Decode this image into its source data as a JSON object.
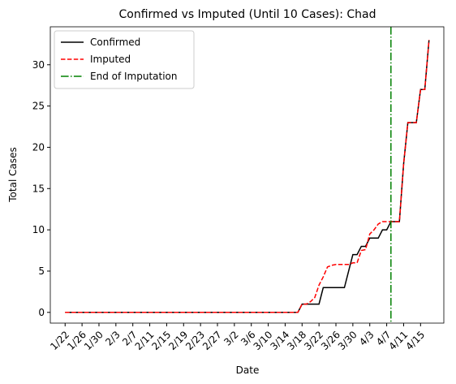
{
  "chart_data": {
    "type": "line",
    "title": "Confirmed vs Imputed (Until 10 Cases): Chad",
    "xlabel": "Date",
    "ylabel": "Total Cases",
    "categories": [
      "1/22",
      null,
      null,
      null,
      "1/26",
      null,
      null,
      null,
      "1/30",
      null,
      null,
      null,
      "2/3",
      null,
      null,
      null,
      "2/7",
      null,
      null,
      null,
      "2/11",
      null,
      null,
      null,
      "2/15",
      null,
      null,
      null,
      "2/19",
      null,
      null,
      null,
      "2/23",
      null,
      null,
      null,
      "2/27",
      null,
      null,
      null,
      "3/2",
      null,
      null,
      null,
      "3/6",
      null,
      null,
      null,
      "3/10",
      null,
      null,
      null,
      "3/14",
      null,
      null,
      null,
      "3/18",
      null,
      null,
      null,
      "3/22",
      null,
      null,
      null,
      "3/26",
      null,
      null,
      null,
      "3/30",
      null,
      null,
      null,
      "4/3",
      null,
      null,
      null,
      "4/7",
      null,
      null,
      null,
      "4/11",
      null,
      null,
      null,
      "4/15",
      null,
      null
    ],
    "series": [
      {
        "name": "Confirmed",
        "color": "#000000",
        "dash": "solid",
        "values": [
          0,
          0,
          0,
          0,
          0,
          0,
          0,
          0,
          0,
          0,
          0,
          0,
          0,
          0,
          0,
          0,
          0,
          0,
          0,
          0,
          0,
          0,
          0,
          0,
          0,
          0,
          0,
          0,
          0,
          0,
          0,
          0,
          0,
          0,
          0,
          0,
          0,
          0,
          0,
          0,
          0,
          0,
          0,
          0,
          0,
          0,
          0,
          0,
          0,
          0,
          0,
          0,
          0,
          0,
          0,
          0,
          1,
          1,
          1,
          1,
          1,
          3,
          3,
          3,
          3,
          3,
          3,
          5,
          7,
          7,
          8,
          8,
          9,
          9,
          9,
          10,
          10,
          11,
          11,
          11,
          18,
          23,
          23,
          23,
          27,
          27,
          33
        ]
      },
      {
        "name": "Imputed",
        "color": "#ff0000",
        "dash": "dashed",
        "values": [
          0,
          0,
          0,
          0,
          0,
          0,
          0,
          0,
          0,
          0,
          0,
          0,
          0,
          0,
          0,
          0,
          0,
          0,
          0,
          0,
          0,
          0,
          0,
          0,
          0,
          0,
          0,
          0,
          0,
          0,
          0,
          0,
          0,
          0,
          0,
          0,
          0,
          0,
          0,
          0,
          0,
          0,
          0,
          0,
          0,
          0,
          0,
          0,
          0,
          0,
          0,
          0,
          0,
          0,
          0,
          0,
          1,
          1,
          1.3,
          1.8,
          3.3,
          4.3,
          5.5,
          5.7,
          5.8,
          5.8,
          5.8,
          5.8,
          6,
          6,
          7.5,
          7.6,
          9.5,
          10,
          10.7,
          11,
          11,
          11,
          11,
          11,
          18,
          23,
          23,
          23,
          27,
          27,
          33
        ]
      }
    ],
    "vlines": [
      {
        "name": "End of Imputation",
        "color": "#008000",
        "dash": "dashdot",
        "x_index": 77
      }
    ],
    "xlim": [
      -3.5,
      89.5
    ],
    "ylim": [
      -1.3,
      34.6
    ],
    "yticks": [
      0,
      5,
      10,
      15,
      20,
      25,
      30
    ],
    "legend": "upper left"
  }
}
